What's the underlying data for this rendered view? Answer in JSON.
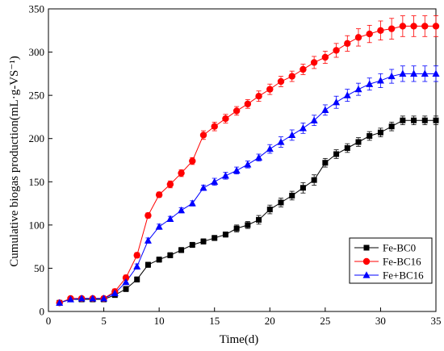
{
  "chart_data": {
    "type": "line",
    "title": "",
    "xlabel": "Time(d)",
    "ylabel": "Cumulative biogas production(mL·g-VS⁻¹)",
    "xlim": [
      0,
      35
    ],
    "ylim": [
      0,
      350
    ],
    "xticks": [
      0,
      5,
      10,
      15,
      20,
      25,
      30,
      35
    ],
    "yticks": [
      0,
      50,
      100,
      150,
      200,
      250,
      300,
      350
    ],
    "grid": false,
    "legend_position": "bottom-right",
    "x": [
      1,
      2,
      3,
      4,
      5,
      6,
      7,
      8,
      9,
      10,
      11,
      12,
      13,
      14,
      15,
      16,
      17,
      18,
      19,
      20,
      21,
      22,
      23,
      24,
      25,
      26,
      27,
      28,
      29,
      30,
      31,
      32,
      33,
      34,
      35
    ],
    "series": [
      {
        "name": "Fe-BC0",
        "color": "#000000",
        "marker": "square",
        "values": [
          10,
          14,
          14,
          14,
          14,
          19,
          26,
          37,
          54,
          60,
          65,
          71,
          77,
          81,
          85,
          89,
          96,
          100,
          106,
          118,
          126,
          134,
          143,
          152,
          172,
          182,
          189,
          196,
          203,
          207,
          214,
          221,
          221,
          221,
          221
        ],
        "errors": [
          2,
          2,
          2,
          2,
          2,
          2,
          3,
          3,
          3,
          3,
          3,
          3,
          3,
          3,
          3,
          3,
          4,
          4,
          5,
          5,
          5,
          5,
          6,
          6,
          5,
          5,
          5,
          5,
          5,
          5,
          5,
          5,
          5,
          5,
          5
        ]
      },
      {
        "name": "Fe-BC16",
        "color": "#ff0000",
        "marker": "circle",
        "values": [
          10,
          15,
          15,
          15,
          15,
          23,
          39,
          65,
          111,
          135,
          147,
          160,
          174,
          204,
          214,
          223,
          232,
          240,
          249,
          257,
          266,
          272,
          280,
          288,
          294,
          302,
          310,
          317,
          321,
          325,
          327,
          330,
          330,
          330,
          330
        ],
        "errors": [
          2,
          2,
          2,
          2,
          2,
          3,
          3,
          3,
          3,
          3,
          4,
          4,
          4,
          5,
          5,
          5,
          5,
          5,
          6,
          6,
          6,
          6,
          6,
          7,
          7,
          8,
          9,
          10,
          10,
          11,
          12,
          12,
          12,
          12,
          12
        ]
      },
      {
        "name": "Fe+BC16",
        "color": "#0000ff",
        "marker": "triangle",
        "values": [
          10,
          14,
          15,
          15,
          15,
          21,
          34,
          52,
          82,
          98,
          107,
          117,
          125,
          143,
          150,
          157,
          163,
          170,
          178,
          188,
          196,
          204,
          212,
          221,
          233,
          242,
          250,
          257,
          263,
          267,
          272,
          275,
          275,
          275,
          275
        ],
        "errors": [
          2,
          2,
          2,
          2,
          2,
          2,
          3,
          3,
          3,
          3,
          3,
          3,
          3,
          3,
          4,
          4,
          4,
          4,
          4,
          5,
          6,
          6,
          6,
          6,
          6,
          7,
          7,
          7,
          7,
          8,
          8,
          9,
          9,
          9,
          9
        ]
      }
    ]
  }
}
